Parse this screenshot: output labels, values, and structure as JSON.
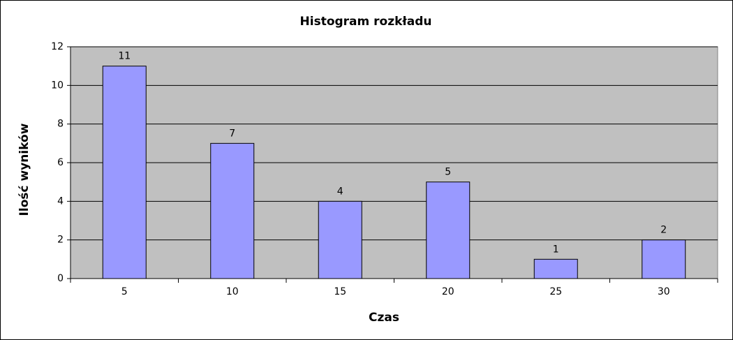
{
  "chart_data": {
    "type": "bar",
    "title": "Histogram rozkładu",
    "x_label": "Czas",
    "y_label": "Ilość wyników",
    "categories": [
      "5",
      "10",
      "15",
      "20",
      "25",
      "30"
    ],
    "values": [
      11,
      7,
      4,
      5,
      1,
      2
    ],
    "color": "#9999ff",
    "ylim": [
      0,
      12
    ],
    "yticks": [
      0,
      2,
      4,
      6,
      8,
      10,
      12
    ],
    "grid": true
  }
}
